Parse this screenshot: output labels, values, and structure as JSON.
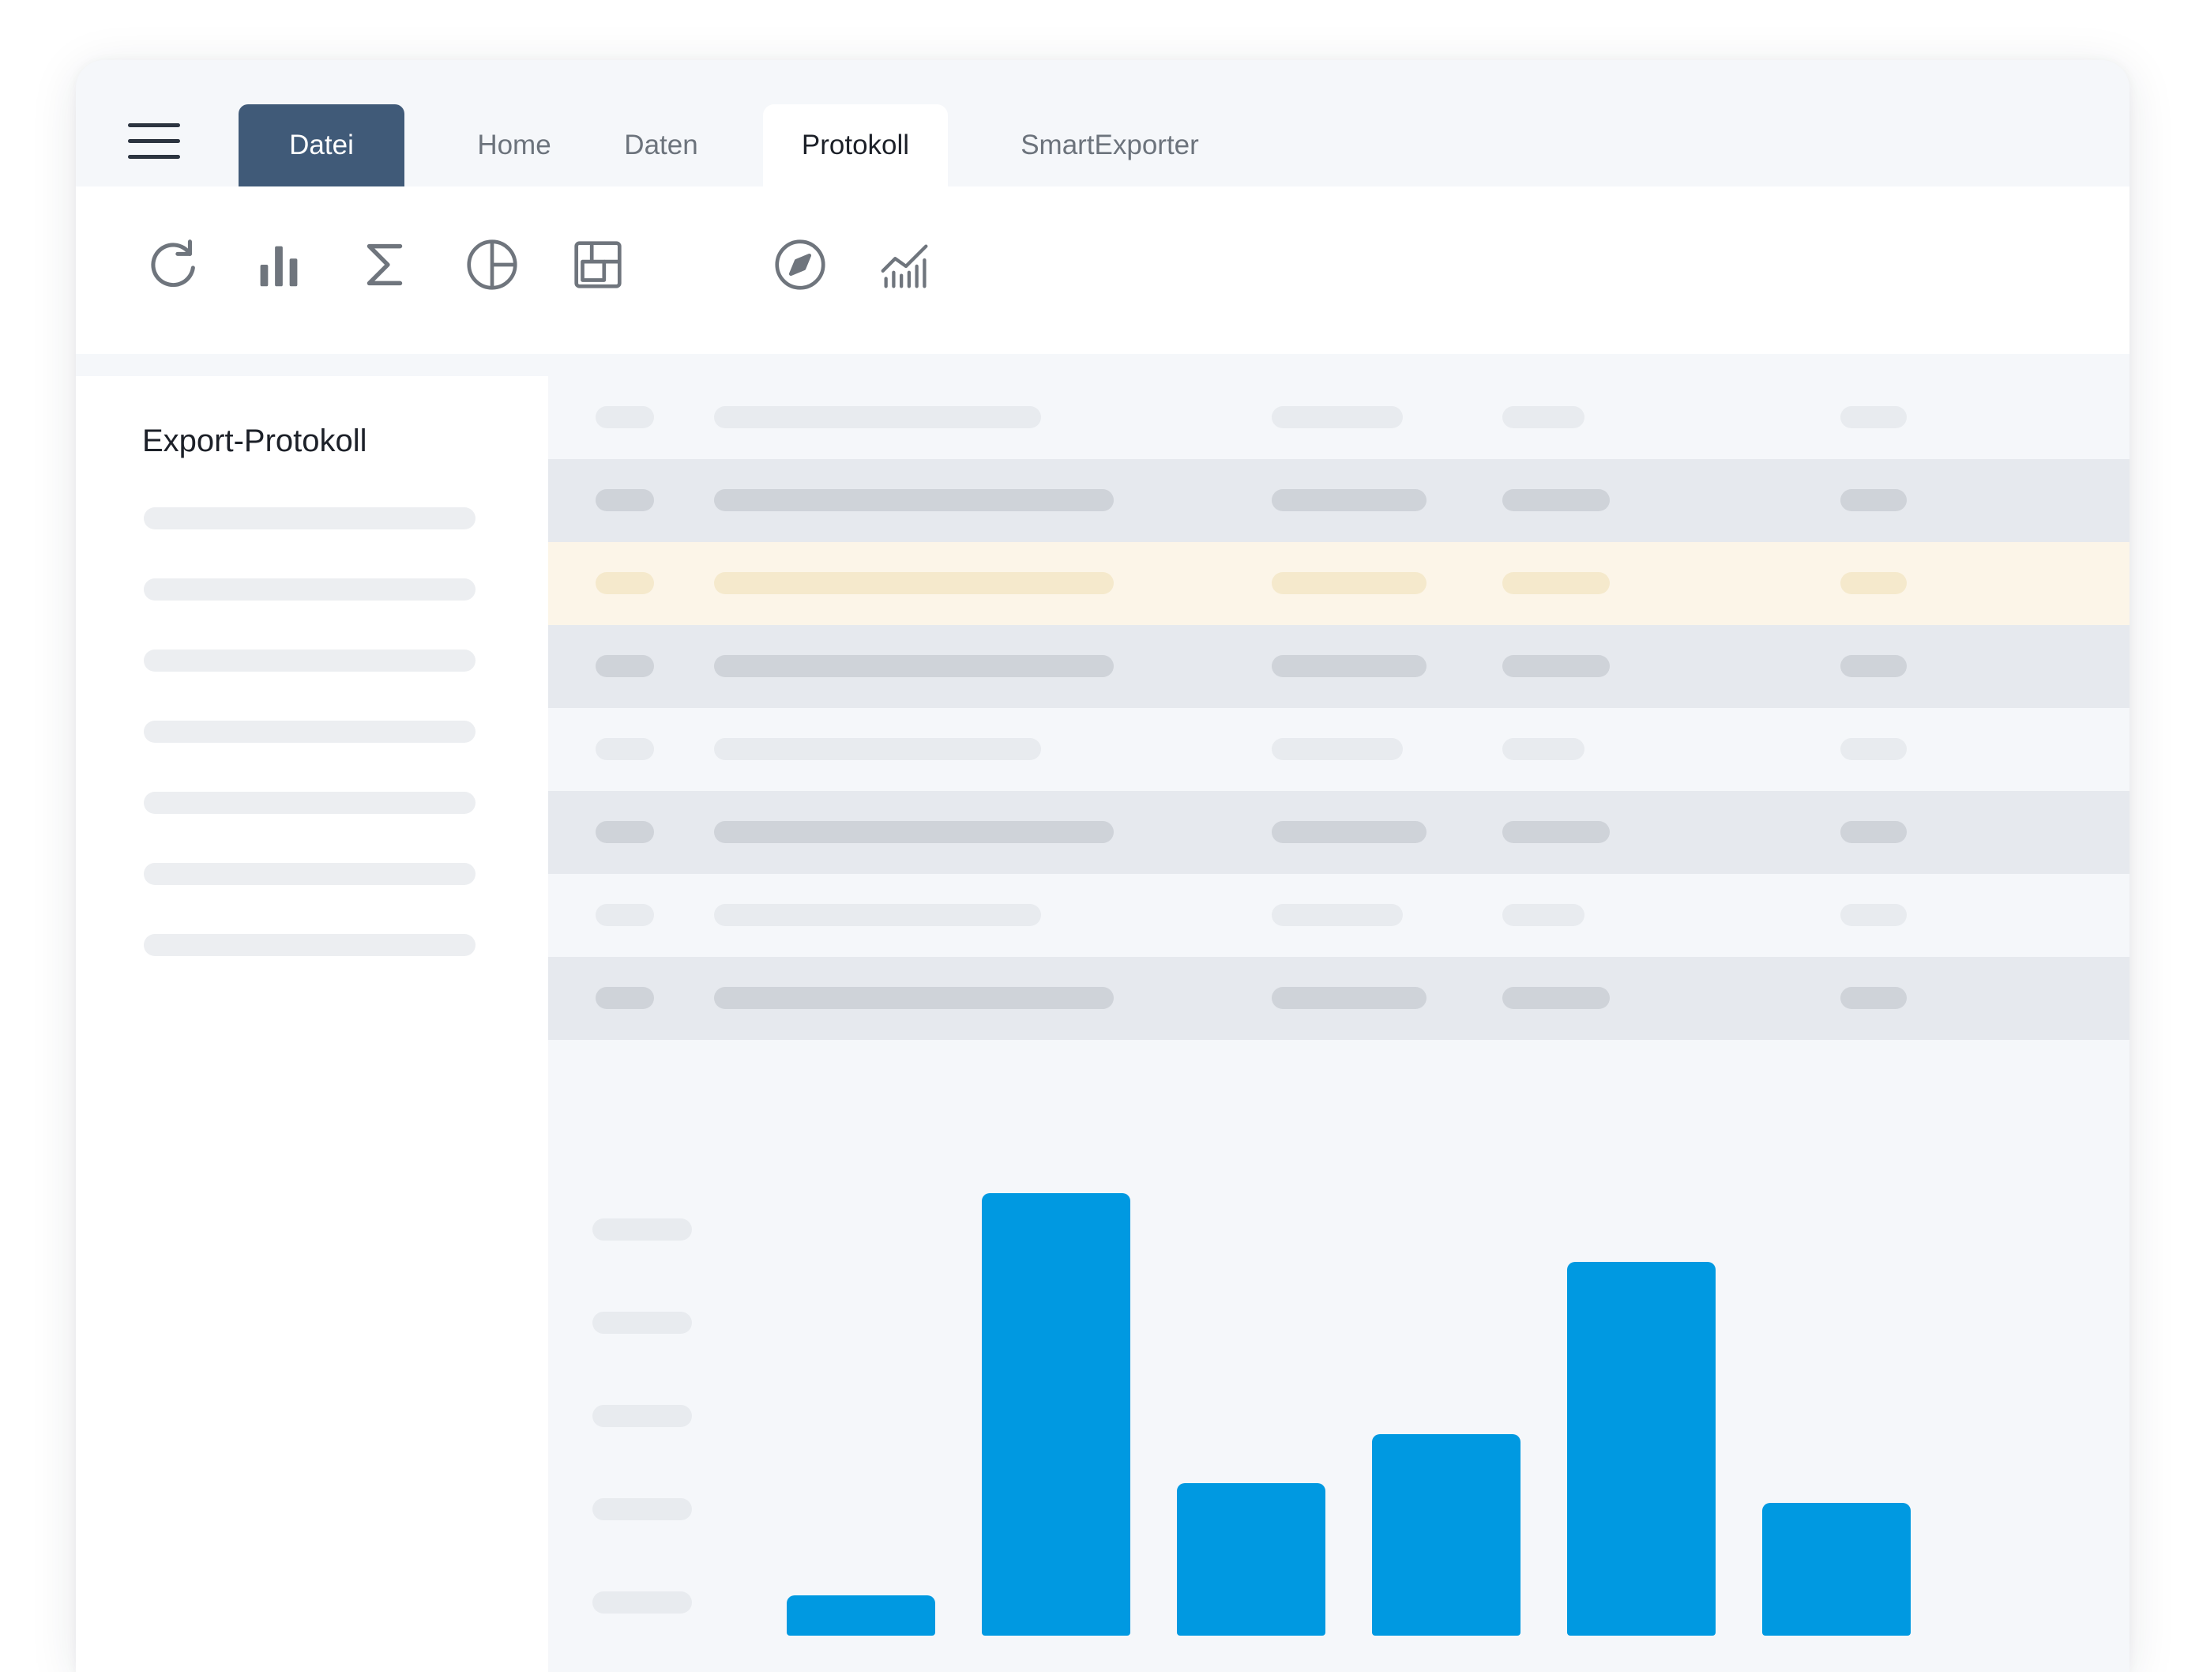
{
  "tabs": {
    "datei": "Datei",
    "home": "Home",
    "daten": "Daten",
    "protokoll": "Protokoll",
    "smartexporter": "SmartExporter",
    "active": "Protokoll"
  },
  "toolbar": {
    "icons": [
      "refresh-icon",
      "bar-chart-icon",
      "sigma-icon",
      "pie-chart-icon",
      "layout-icon",
      "compass-icon",
      "trend-chart-icon"
    ]
  },
  "left_panel": {
    "title": "Export-Protokoll",
    "placeholder_lines": 7
  },
  "table": {
    "row_styles": [
      "light",
      "dark",
      "highlight",
      "dark",
      "light",
      "dark",
      "light",
      "dark"
    ],
    "highlighted_row": 3
  },
  "colors": {
    "primary_tab": "#405a78",
    "bar": "#0099e1",
    "highlight_row": "#fcf5e8"
  },
  "chart_data": {
    "type": "bar",
    "values": [
      1,
      11,
      3.8,
      5,
      9.3,
      3.3
    ],
    "ylim": [
      0,
      11
    ]
  }
}
